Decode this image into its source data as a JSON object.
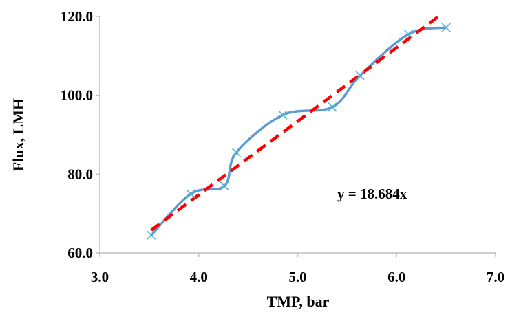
{
  "chart_data": {
    "type": "scatter",
    "xlabel": "TMP, bar",
    "ylabel": "Flux, LMH",
    "xlim": [
      3.0,
      7.0
    ],
    "ylim": [
      60.0,
      120.0
    ],
    "x_ticks": [
      "3.0",
      "4.0",
      "5.0",
      "6.0",
      "7.0"
    ],
    "y_ticks": [
      "60.0",
      "80.0",
      "100.0",
      "120.0"
    ],
    "grid": false,
    "series": [
      {
        "marker": "x",
        "smoothed_line": true,
        "color": "#5B9BD5",
        "marker_color": "#4FB0D8",
        "points": [
          {
            "x": 3.52,
            "y": 64.5
          },
          {
            "x": 3.92,
            "y": 75.0
          },
          {
            "x": 4.26,
            "y": 77.0
          },
          {
            "x": 4.38,
            "y": 85.5
          },
          {
            "x": 4.85,
            "y": 95.0
          },
          {
            "x": 5.35,
            "y": 97.0
          },
          {
            "x": 5.63,
            "y": 105.0
          },
          {
            "x": 6.12,
            "y": 115.5
          },
          {
            "x": 6.5,
            "y": 117.2
          }
        ]
      }
    ],
    "trendline": {
      "type": "linear",
      "slope": 18.684,
      "intercept": 0,
      "color": "#FF0000",
      "dashed": true,
      "x_range": [
        3.52,
        6.45
      ],
      "equation_label": "y = 18.684x"
    }
  }
}
